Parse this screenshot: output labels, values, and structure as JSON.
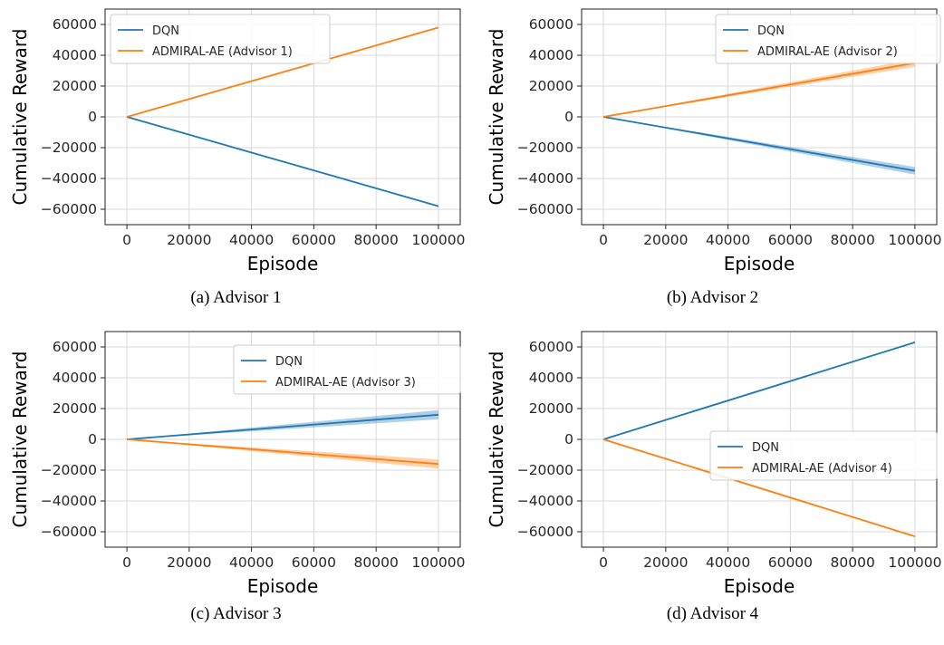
{
  "figure": {
    "colors": {
      "dqn": "#1f77b4",
      "admiral": "#ff7f0e",
      "grid": "#d9d9d9",
      "axis": "#222222"
    }
  },
  "chart_data": [
    {
      "type": "line",
      "caption": "(a) Advisor 1",
      "xlabel": "Episode",
      "ylabel": "Cumulative Reward",
      "xlim": [
        -7000,
        107000
      ],
      "ylim": [
        -70000,
        70000
      ],
      "xticks": [
        0,
        20000,
        40000,
        60000,
        80000,
        100000
      ],
      "xtick_labels": [
        "0",
        "20000",
        "40000",
        "60000",
        "80000",
        "100000"
      ],
      "yticks": [
        -60000,
        -40000,
        -20000,
        0,
        20000,
        40000,
        60000
      ],
      "ytick_labels": [
        "−60000",
        "−40000",
        "−20000",
        "0",
        "20000",
        "40000",
        "60000"
      ],
      "grid": true,
      "legend_position": "upper-left",
      "series": [
        {
          "name": "DQN",
          "color": "#1f77b4",
          "x": [
            0,
            100000
          ],
          "y": [
            0,
            -58000
          ],
          "band_end": 300
        },
        {
          "name": "ADMIRAL-AE (Advisor 1)",
          "color": "#ff7f0e",
          "x": [
            0,
            100000
          ],
          "y": [
            0,
            58000
          ],
          "band_end": 300
        }
      ]
    },
    {
      "type": "line",
      "caption": "(b) Advisor 2",
      "xlabel": "Episode",
      "ylabel": "Cumulative Reward",
      "xlim": [
        -7000,
        107000
      ],
      "ylim": [
        -70000,
        70000
      ],
      "xticks": [
        0,
        20000,
        40000,
        60000,
        80000,
        100000
      ],
      "xtick_labels": [
        "0",
        "20000",
        "40000",
        "60000",
        "80000",
        "100000"
      ],
      "yticks": [
        -60000,
        -40000,
        -20000,
        0,
        20000,
        40000,
        60000
      ],
      "ytick_labels": [
        "−60000",
        "−40000",
        "−20000",
        "0",
        "20000",
        "40000",
        "60000"
      ],
      "grid": true,
      "legend_position": "upper-center",
      "series": [
        {
          "name": "DQN",
          "color": "#1f77b4",
          "x": [
            0,
            100000
          ],
          "y": [
            0,
            -35000
          ],
          "band_end": 2500
        },
        {
          "name": "ADMIRAL-AE (Advisor 2)",
          "color": "#ff7f0e",
          "x": [
            0,
            100000
          ],
          "y": [
            0,
            35000
          ],
          "band_end": 2500
        }
      ]
    },
    {
      "type": "line",
      "caption": "(c) Advisor 3",
      "xlabel": "Episode",
      "ylabel": "Cumulative Reward",
      "xlim": [
        -7000,
        107000
      ],
      "ylim": [
        -70000,
        70000
      ],
      "xticks": [
        0,
        20000,
        40000,
        60000,
        80000,
        100000
      ],
      "xtick_labels": [
        "0",
        "20000",
        "40000",
        "60000",
        "80000",
        "100000"
      ],
      "yticks": [
        -60000,
        -40000,
        -20000,
        0,
        20000,
        40000,
        60000
      ],
      "ytick_labels": [
        "−60000",
        "−40000",
        "−20000",
        "0",
        "20000",
        "40000",
        "60000"
      ],
      "grid": true,
      "legend_position": "upper-right",
      "series": [
        {
          "name": "DQN",
          "color": "#1f77b4",
          "x": [
            0,
            100000
          ],
          "y": [
            0,
            16000
          ],
          "band_end": 3000
        },
        {
          "name": "ADMIRAL-AE (Advisor 3)",
          "color": "#ff7f0e",
          "x": [
            0,
            100000
          ],
          "y": [
            0,
            -16000
          ],
          "band_end": 3000
        }
      ]
    },
    {
      "type": "line",
      "caption": "(d) Advisor 4",
      "xlabel": "Episode",
      "ylabel": "Cumulative Reward",
      "xlim": [
        -7000,
        107000
      ],
      "ylim": [
        -70000,
        70000
      ],
      "xticks": [
        0,
        20000,
        40000,
        60000,
        80000,
        100000
      ],
      "xtick_labels": [
        "0",
        "20000",
        "40000",
        "60000",
        "80000",
        "100000"
      ],
      "yticks": [
        -60000,
        -40000,
        -20000,
        0,
        20000,
        40000,
        60000
      ],
      "ytick_labels": [
        "−60000",
        "−40000",
        "−20000",
        "0",
        "20000",
        "40000",
        "60000"
      ],
      "grid": true,
      "legend_position": "center-right",
      "series": [
        {
          "name": "DQN",
          "color": "#1f77b4",
          "x": [
            0,
            100000
          ],
          "y": [
            0,
            63000
          ],
          "band_end": 300
        },
        {
          "name": "ADMIRAL-AE (Advisor 4)",
          "color": "#ff7f0e",
          "x": [
            0,
            100000
          ],
          "y": [
            0,
            -63000
          ],
          "band_end": 300
        }
      ]
    }
  ]
}
